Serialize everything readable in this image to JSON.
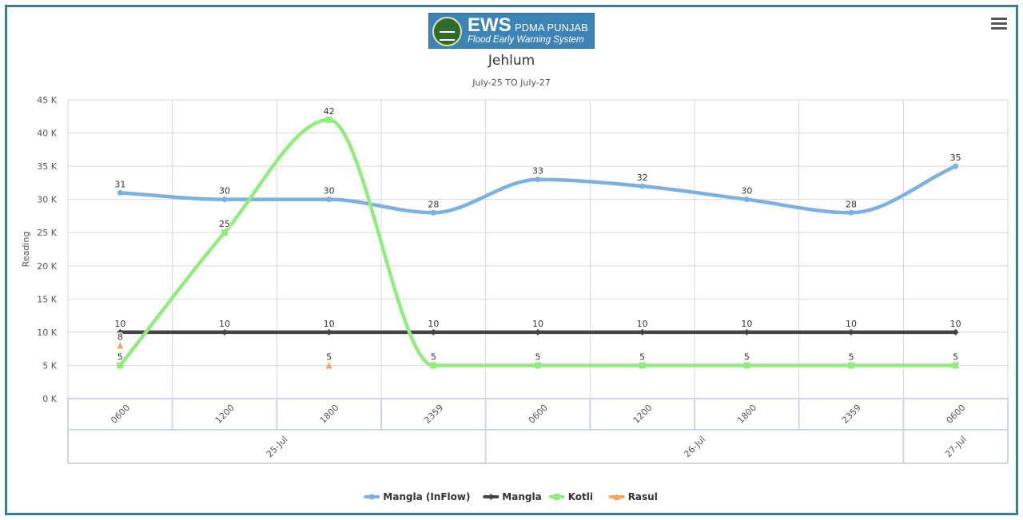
{
  "logo": {
    "brand": "EWS",
    "org": "PDMA PUNJAB",
    "tagline": "Flood Early Warning System"
  },
  "menu": {
    "icon": "hamburger-menu-icon"
  },
  "chart_data": {
    "type": "line",
    "title": "Jehlum",
    "subtitle": "July-25 TO July-27",
    "ylabel": "Reading",
    "xlabel": "",
    "ylim": [
      0,
      45000
    ],
    "y_ticks": [
      "0 K",
      "5 K",
      "10 K",
      "15 K",
      "20 K",
      "25 K",
      "30 K",
      "35 K",
      "40 K",
      "45 K"
    ],
    "categories": [
      "0600",
      "1200",
      "1800",
      "2359",
      "0600",
      "1200",
      "1800",
      "2359",
      "0600"
    ],
    "category_groups": [
      {
        "label": "25-Jul",
        "span": 4
      },
      {
        "label": "26-Jul",
        "span": 4
      },
      {
        "label": "27-Jul",
        "span": 1
      }
    ],
    "grid": true,
    "legend_position": "bottom-center",
    "series": [
      {
        "name": "Mangla (InFlow)",
        "color": "#7cb0e2",
        "smooth": true,
        "marker": "circle",
        "values": [
          31000,
          30000,
          30000,
          28000,
          33000,
          32000,
          30000,
          28000,
          35000
        ],
        "labels": [
          "31",
          "30",
          "30",
          "28",
          "33",
          "32",
          "30",
          "28",
          "35"
        ]
      },
      {
        "name": "Mangla",
        "color": "#434348",
        "smooth": false,
        "marker": "diamond",
        "values": [
          10000,
          10000,
          10000,
          10000,
          10000,
          10000,
          10000,
          10000,
          10000
        ],
        "labels": [
          "10",
          "10",
          "10",
          "10",
          "10",
          "10",
          "10",
          "10",
          "10"
        ]
      },
      {
        "name": "Kotli",
        "color": "#90ed7d",
        "smooth": true,
        "marker": "square",
        "values": [
          5000,
          25000,
          42000,
          5000,
          5000,
          5000,
          5000,
          5000,
          5000
        ],
        "labels": [
          "5",
          "25",
          "42",
          "5",
          "5",
          "5",
          "5",
          "5",
          "5"
        ]
      },
      {
        "name": "Rasul",
        "color": "#f7a35c",
        "smooth": false,
        "marker": "triangle",
        "line": false,
        "values": [
          8000,
          null,
          5000,
          null,
          5000,
          null,
          null,
          5000,
          null
        ],
        "labels": [
          "8",
          null,
          "5",
          null,
          null,
          null,
          null,
          null,
          null
        ]
      }
    ]
  }
}
